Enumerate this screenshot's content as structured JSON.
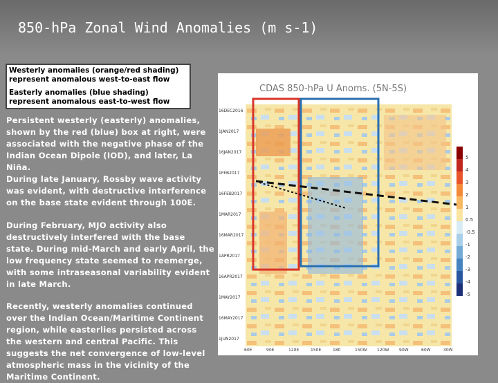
{
  "header": {
    "title": "850-hPa Zonal Wind Anomalies (m s-1)"
  },
  "legend_box": {
    "lines": [
      "Westerly anomalies (orange/red shading) represent anomalous west-to-east flow",
      "Easterly anomalies (blue shading) represent anomalous east-to-west flow"
    ]
  },
  "paragraphs": [
    "Persistent westerly (easterly) anomalies, shown by the red (blue) box at right, were associated with the negative phase of the Indian Ocean Dipole (IOD), and later, La Niña.",
    "During late January, Rossby wave activity was evident, with destructive interference on the base state evident through 100E.",
    "During February, MJO activity also destructively interfered with the base state. During mid-March and early April, the low frequency state seemed to reemerge, with some intraseasonal variability evident in late March.",
    "Recently, westerly anomalies continued over the Indian Ocean/Maritime Continent region, while easterlies persisted across the western and central Pacific. This suggests the net convergence of low-level atmospheric mass in the vicinity of the Maritime Continent."
  ],
  "figure": {
    "title": "CDAS 850-hPa U Anoms. (5N-5S)",
    "dates": [
      "16DEC2016",
      "1JAN2017",
      "16JAN2017",
      "1FEB2017",
      "16FEB2017",
      "1MAR2017",
      "16MAR2017",
      "1APR2017",
      "16APR2017",
      "1MAY2017",
      "16MAY2017",
      "1JUN2017"
    ],
    "longitudes": [
      "60E",
      "90E",
      "120E",
      "150E",
      "180",
      "150W",
      "120W",
      "90W",
      "60W",
      "30W"
    ],
    "colorbar_labels": [
      "5",
      "4",
      "3",
      "2",
      "1",
      "0.5",
      "-0.5",
      "-1",
      "-2",
      "-3",
      "-4",
      "-5"
    ]
  }
}
